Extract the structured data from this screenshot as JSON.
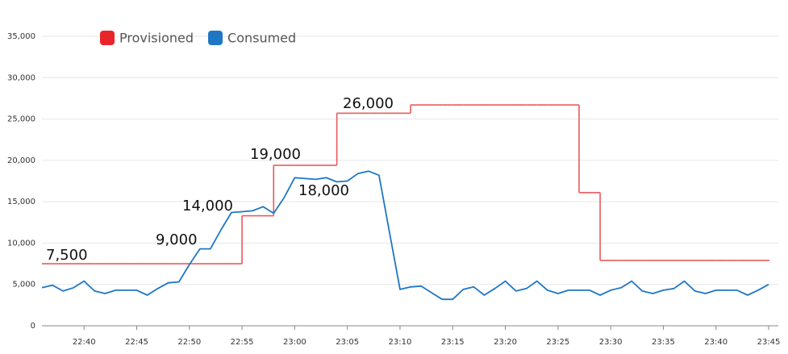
{
  "chart_data": {
    "type": "line",
    "x": [
      "22:36",
      "22:37",
      "22:38",
      "22:39",
      "22:40",
      "22:41",
      "22:42",
      "22:43",
      "22:44",
      "22:45",
      "22:46",
      "22:47",
      "22:48",
      "22:49",
      "22:50",
      "22:51",
      "22:52",
      "22:53",
      "22:54",
      "22:55",
      "22:56",
      "22:57",
      "22:58",
      "22:59",
      "23:00",
      "23:01",
      "23:02",
      "23:03",
      "23:04",
      "23:05",
      "23:06",
      "23:07",
      "23:08",
      "23:09",
      "23:10",
      "23:11",
      "23:12",
      "23:13",
      "23:14",
      "23:15",
      "23:16",
      "23:17",
      "23:18",
      "23:19",
      "23:20",
      "23:21",
      "23:22",
      "23:23",
      "23:24",
      "23:25",
      "23:26",
      "23:27",
      "23:28",
      "23:29",
      "23:30",
      "23:31",
      "23:32",
      "23:33",
      "23:34",
      "23:35",
      "23:36",
      "23:37",
      "23:38",
      "23:39",
      "23:40",
      "23:41",
      "23:42",
      "23:43",
      "23:44",
      "23:45"
    ],
    "series": [
      {
        "name": "Provisioned",
        "color": "#e8252a",
        "line_color": "#e8595c",
        "step": true,
        "values": [
          7500,
          7500,
          7500,
          7500,
          7500,
          7500,
          7500,
          7500,
          7500,
          7500,
          7500,
          7500,
          7500,
          7500,
          7500,
          7500,
          7500,
          7500,
          7500,
          13300,
          13300,
          13300,
          19400,
          19400,
          19400,
          19400,
          19400,
          19400,
          25700,
          25700,
          25700,
          25700,
          25700,
          25700,
          25700,
          26700,
          26700,
          26700,
          26700,
          26700,
          26700,
          26700,
          26700,
          26700,
          26700,
          26700,
          26700,
          26700,
          26700,
          26700,
          26700,
          16100,
          16100,
          7900,
          7900,
          7900,
          7900,
          7900,
          7900,
          7900,
          7900,
          7900,
          7900,
          7900,
          7900,
          7900,
          7900,
          7900,
          7900,
          7900
        ]
      },
      {
        "name": "Consumed",
        "color": "#1f77c4",
        "line_color": "#1f77c4",
        "step": false,
        "values": [
          4600,
          4900,
          4200,
          4600,
          5400,
          4200,
          3900,
          4300,
          4300,
          4300,
          3700,
          4500,
          5200,
          5300,
          7400,
          9300,
          9300,
          11600,
          13700,
          13800,
          13900,
          14400,
          13600,
          15500,
          17900,
          17800,
          17700,
          17900,
          17400,
          17500,
          18400,
          18700,
          18200,
          11300,
          4400,
          4700,
          4800,
          4000,
          3200,
          3200,
          4400,
          4700,
          3700,
          4500,
          5400,
          4200,
          4500,
          5400,
          4300,
          3900,
          4300,
          4300,
          4300,
          3700,
          4300,
          4600,
          5400,
          4200,
          3900,
          4300,
          4500,
          5400,
          4200,
          3900,
          4300,
          4300,
          4300,
          3700,
          4300,
          5000
        ]
      }
    ],
    "annotations": [
      "7,500",
      "9,000",
      "14,000",
      "19,000",
      "18,000",
      "26,000"
    ],
    "xticks": [
      "22:40",
      "22:45",
      "22:50",
      "22:55",
      "23:00",
      "23:05",
      "23:10",
      "23:15",
      "23:20",
      "23:25",
      "23:30",
      "23:35",
      "23:40",
      "23:45"
    ],
    "ylim": [
      0,
      35000
    ],
    "yticks": [
      0,
      {
        "value": 5000,
        "label": "5,000"
      },
      {
        "value": 10000,
        "label": "10,000"
      },
      {
        "value": 15000,
        "label": "15,000"
      },
      {
        "value": 20000,
        "label": "20,000"
      },
      {
        "value": 25000,
        "label": "25,000"
      },
      {
        "value": 30000,
        "label": "30,000"
      },
      {
        "value": 35000,
        "label": "35,000"
      }
    ],
    "grid": true,
    "legend": "top-left"
  }
}
